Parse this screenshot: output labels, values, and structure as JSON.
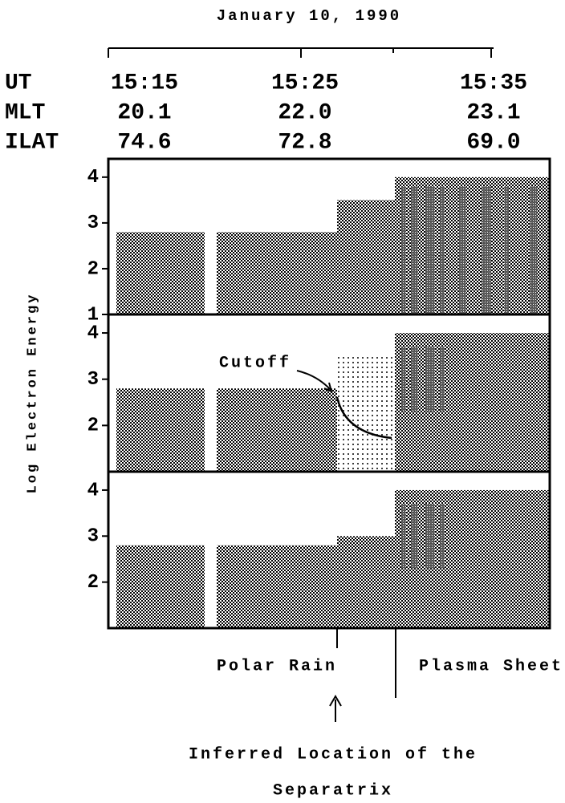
{
  "chart_data": {
    "type": "spectrogram",
    "title": "January 10, 1990",
    "y_label": "Log Electron Energy",
    "rows": [
      {
        "name": "UT",
        "values": [
          "15:15",
          "15:25",
          "15:35"
        ]
      },
      {
        "name": "MLT",
        "values": [
          20.1,
          22.0,
          23.1
        ],
        "value_labels": [
          "20.1",
          "22.0",
          "23.1"
        ]
      },
      {
        "name": "ILAT",
        "values": [
          74.6,
          72.8,
          69.0
        ],
        "value_labels": [
          "74.6",
          "72.8",
          "69.0"
        ]
      }
    ],
    "ylim": [
      1,
      4.4
    ],
    "yticks": [
      1,
      2,
      3,
      4
    ],
    "annotations": [
      "Cutoff",
      "Polar Rain",
      "Plasma Sheet",
      "Inferred Location of the",
      "Separatrix"
    ]
  }
}
